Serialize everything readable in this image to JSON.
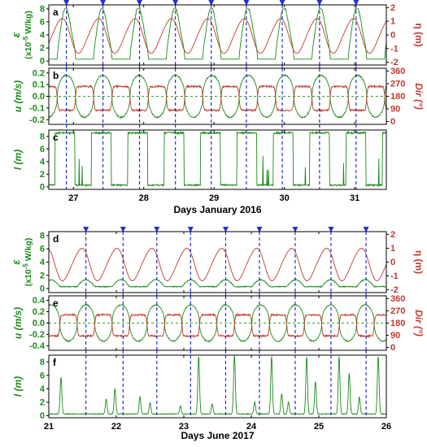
{
  "colors": {
    "green": "#1a8a1a",
    "red": "#c0392b",
    "blue_dash": "#2233cc",
    "zero_line": "#22aa22",
    "axis": "#000000"
  },
  "chart_data": [
    {
      "panel": "a",
      "type": "line",
      "period": "January 2016",
      "xlim": [
        26.65,
        31.45
      ],
      "x_ticks": [
        "27",
        "28",
        "29",
        "30",
        "31"
      ],
      "left_axis": {
        "label_parts": [
          "ε",
          "(x10",
          "-5",
          " W/kg)"
        ],
        "ticks": [
          "0",
          "2",
          "4",
          "6",
          "8"
        ],
        "ylim": [
          -0.6,
          8.6
        ]
      },
      "right_axis": {
        "label": "η (m)",
        "ticks": [
          "-2",
          "-1",
          "0",
          "1",
          "2"
        ],
        "ylim": [
          -2.2,
          2.2
        ]
      },
      "markers_x": [
        26.9,
        27.42,
        27.94,
        28.45,
        28.96,
        29.46,
        29.97,
        30.5,
        31.02
      ],
      "series": [
        {
          "name": "ε",
          "axis": "left",
          "color": "green",
          "model": "epsilon",
          "peak": 8.0,
          "base": 0.3
        },
        {
          "name": "η",
          "axis": "right",
          "color": "red",
          "model": "eta",
          "amp": 1.25,
          "offset": -0.05
        }
      ]
    },
    {
      "panel": "b",
      "type": "line",
      "period": "January 2016",
      "xlim": [
        26.65,
        31.45
      ],
      "left_axis": {
        "label": "u (m/s)",
        "ticks": [
          "-0.2",
          "-0.1",
          "0.0",
          "0.1",
          "0.2"
        ],
        "ylim": [
          -0.24,
          0.24
        ]
      },
      "right_axis": {
        "label": "Dir (°)",
        "ticks": [
          "0",
          "90",
          "180",
          "270",
          "360"
        ],
        "ylim": [
          -20,
          380
        ]
      },
      "zero_line": 0,
      "markers_x": [
        26.9,
        27.42,
        27.94,
        28.45,
        28.96,
        29.46,
        29.97,
        30.5,
        31.02
      ],
      "series": [
        {
          "name": "u",
          "axis": "left",
          "color": "green",
          "model": "velocity",
          "amp": 0.18
        },
        {
          "name": "Dir",
          "axis": "right",
          "color": "red",
          "model": "direction",
          "hi": 250,
          "lo": 80
        }
      ]
    },
    {
      "panel": "c",
      "type": "line",
      "period": "January 2016",
      "xlim": [
        26.65,
        31.45
      ],
      "xlabel": "Days January 2016",
      "left_axis": {
        "label": "l (m)",
        "ticks": [
          "0",
          "2",
          "4",
          "6",
          "8"
        ],
        "ylim": [
          -0.4,
          9.0
        ]
      },
      "markers_x": [
        26.9,
        27.42,
        27.94,
        28.45,
        28.96,
        29.46,
        29.97,
        30.5,
        31.02
      ],
      "series": [
        {
          "name": "l",
          "axis": "left",
          "color": "green",
          "model": "blocks",
          "top": 8.7
        }
      ]
    },
    {
      "panel": "d",
      "type": "line",
      "period": "June 2017",
      "xlim": [
        21,
        26
      ],
      "x_ticks": [
        "21",
        "22",
        "23",
        "24",
        "25",
        "26"
      ],
      "left_axis": {
        "label_parts": [
          "ε",
          "(x10",
          "-5",
          " W/kg)"
        ],
        "ticks": [
          "0",
          "2",
          "4",
          "6",
          "8"
        ],
        "ylim": [
          -0.6,
          8.6
        ]
      },
      "right_axis": {
        "label": "η (m)",
        "ticks": [
          "-2",
          "-1",
          "0",
          "1",
          "2"
        ],
        "ylim": [
          -2.2,
          2.2
        ]
      },
      "markers_x": [
        21.55,
        22.1,
        22.6,
        23.1,
        23.62,
        24.12,
        24.65,
        25.18,
        25.7
      ],
      "series": [
        {
          "name": "ε",
          "axis": "left",
          "color": "green",
          "model": "epsilon_small",
          "peak": 1.3,
          "base": 0.3
        },
        {
          "name": "η",
          "axis": "right",
          "color": "red",
          "model": "eta",
          "amp": 1.15,
          "offset": -0.15
        }
      ]
    },
    {
      "panel": "e",
      "type": "line",
      "period": "June 2017",
      "xlim": [
        21,
        26
      ],
      "left_axis": {
        "label": "u (m/s)",
        "ticks": [
          "-0.4",
          "-0.2",
          "0.0",
          "0.2",
          "0.4"
        ],
        "ylim": [
          -0.48,
          0.48
        ]
      },
      "right_axis": {
        "label": "Dir (°)",
        "ticks": [
          "0",
          "90",
          "180",
          "270",
          "360"
        ],
        "ylim": [
          -20,
          380
        ]
      },
      "zero_line": 0,
      "markers_x": [
        21.55,
        22.1,
        22.6,
        23.1,
        23.62,
        24.12,
        24.65,
        25.18,
        25.7
      ],
      "series": [
        {
          "name": "u",
          "axis": "left",
          "color": "green",
          "model": "velocity",
          "amp": 0.32
        },
        {
          "name": "Dir",
          "axis": "right",
          "color": "red",
          "model": "direction",
          "hi": 240,
          "lo": 85
        }
      ]
    },
    {
      "panel": "f",
      "type": "line",
      "period": "June 2017",
      "xlim": [
        21,
        26
      ],
      "xlabel": "Days June 2017",
      "left_axis": {
        "label": "l (m)",
        "ticks": [
          "0",
          "2",
          "4",
          "6",
          "8"
        ],
        "ylim": [
          -0.3,
          9.0
        ]
      },
      "markers_x": [
        21.55,
        22.1,
        22.6,
        23.1,
        23.62,
        24.12,
        24.65,
        25.18,
        25.7
      ],
      "series": [
        {
          "name": "l",
          "axis": "left",
          "color": "green",
          "model": "spikes",
          "spikes": [
            [
              21.18,
              5.5
            ],
            [
              21.85,
              2.2
            ],
            [
              21.98,
              3.8
            ],
            [
              22.35,
              2.6
            ],
            [
              22.5,
              1.7
            ],
            [
              22.95,
              1.2
            ],
            [
              23.22,
              8.6
            ],
            [
              23.42,
              1.5
            ],
            [
              23.75,
              8.8
            ],
            [
              24.05,
              1.8
            ],
            [
              24.3,
              8.5
            ],
            [
              24.45,
              3.0
            ],
            [
              24.55,
              1.8
            ],
            [
              24.82,
              8.5
            ],
            [
              24.95,
              4.8
            ],
            [
              25.3,
              8.6
            ],
            [
              25.45,
              6.0
            ],
            [
              25.6,
              2.5
            ],
            [
              25.88,
              8.6
            ]
          ]
        }
      ]
    }
  ]
}
